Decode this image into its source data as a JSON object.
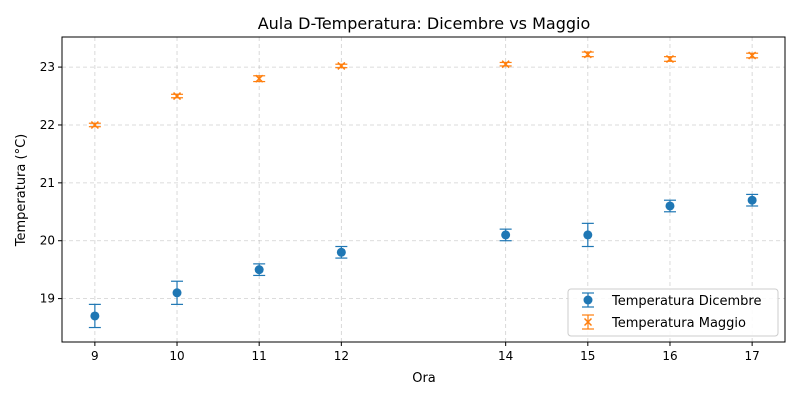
{
  "chart_data": {
    "type": "scatter",
    "title": "Aula D-Temperatura: Dicembre vs Maggio",
    "xlabel": "Ora",
    "ylabel": "Temperatura (°C)",
    "x": [
      9,
      10,
      11,
      12,
      14,
      15,
      16,
      17
    ],
    "xticks": [
      "9",
      "10",
      "11",
      "12",
      "14",
      "15",
      "16",
      "17"
    ],
    "yticks": [
      "19",
      "20",
      "21",
      "22",
      "23"
    ],
    "xlim": [
      8.6,
      17.4
    ],
    "ylim": [
      18.25,
      23.52
    ],
    "grid": true,
    "legend_position": "lower-right",
    "series": [
      {
        "name": "Temperatura Dicembre",
        "marker": "circle",
        "color": "#1f77b4",
        "values": [
          18.7,
          19.1,
          19.5,
          19.8,
          20.1,
          20.1,
          20.6,
          20.7
        ],
        "errors": [
          0.2,
          0.2,
          0.1,
          0.1,
          0.1,
          0.2,
          0.1,
          0.1
        ]
      },
      {
        "name": "Temperatura Maggio",
        "marker": "x",
        "color": "#ff7f0e",
        "values": [
          22.0,
          22.5,
          22.8,
          23.02,
          23.05,
          23.22,
          23.14,
          23.2
        ],
        "errors": [
          0.03,
          0.03,
          0.05,
          0.03,
          0.03,
          0.04,
          0.04,
          0.04
        ]
      }
    ]
  }
}
